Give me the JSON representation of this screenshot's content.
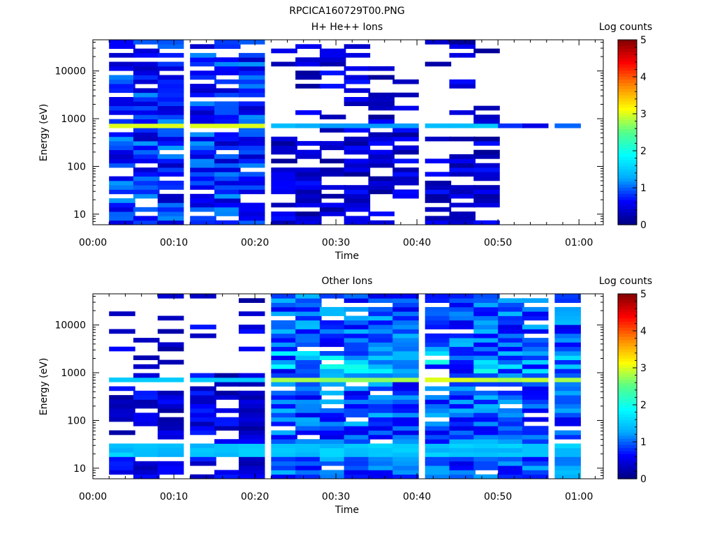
{
  "figure_title": "RPCICA160729T00.PNG",
  "colors": {
    "colormap": [
      "#000080",
      "#0000ff",
      "#00aaff",
      "#00ffff",
      "#55ff88",
      "#ffff00",
      "#ff8800",
      "#ff0000",
      "#800000"
    ],
    "empty": "#ffffff",
    "axes": "#000000"
  },
  "chart_data": [
    {
      "type": "heatmap",
      "title": "H+ He++ Ions",
      "xlabel": "Time",
      "ylabel": "Energy (eV)",
      "colorbar_label": "Log counts",
      "colorbar_ticks": [
        "0",
        "1",
        "2",
        "3",
        "4",
        "5"
      ],
      "clim": [
        0,
        5
      ],
      "xlim": [
        "00:00",
        "01:03"
      ],
      "x_ticks": [
        "00:00",
        "00:10",
        "00:20",
        "00:30",
        "00:40",
        "00:50",
        "01:00"
      ],
      "ylim": [
        6,
        45000
      ],
      "yscale": "log",
      "y_ticks": [
        "10",
        "100",
        "1000",
        "10000"
      ],
      "time_bins_start": [
        "00:02",
        "00:05",
        "00:08",
        "00:12",
        "00:15",
        "00:18",
        "00:22",
        "00:25",
        "00:28",
        "00:31",
        "00:34",
        "00:37",
        "00:41",
        "00:44",
        "00:47",
        "00:50",
        "00:53",
        "00:57"
      ],
      "bin_width_min": 3.2,
      "active_bins": 15,
      "dense_bins": 6,
      "band_energy_eV": 700,
      "band_levels": [
        3.0,
        3.0,
        3.0,
        3.0,
        3.0,
        3.0,
        1.4,
        1.3,
        1.2,
        1.2,
        1.2,
        1.2,
        1.4,
        1.4,
        1.5,
        0.8,
        0.5,
        1.0
      ]
    },
    {
      "type": "heatmap",
      "title": "Other Ions",
      "xlabel": "Time",
      "ylabel": "Energy (eV)",
      "colorbar_label": "Log counts",
      "colorbar_ticks": [
        "0",
        "1",
        "2",
        "3",
        "4",
        "5"
      ],
      "clim": [
        0,
        5
      ],
      "xlim": [
        "00:00",
        "01:03"
      ],
      "x_ticks": [
        "00:00",
        "00:10",
        "00:20",
        "00:30",
        "00:40",
        "00:50",
        "01:00"
      ],
      "ylim": [
        6,
        45000
      ],
      "yscale": "log",
      "y_ticks": [
        "10",
        "100",
        "1000",
        "10000"
      ],
      "time_bins_start": [
        "00:02",
        "00:05",
        "00:08",
        "00:12",
        "00:15",
        "00:18",
        "00:22",
        "00:25",
        "00:28",
        "00:31",
        "00:34",
        "00:37",
        "00:41",
        "00:44",
        "00:47",
        "00:50",
        "00:53",
        "00:57"
      ],
      "bin_width_min": 3.2,
      "sparse_bins": 6,
      "band_energy_eV": 700,
      "band_levels": [
        1.5,
        1.5,
        1.5,
        1.5,
        1.5,
        1.5,
        2.8,
        2.8,
        2.7,
        2.7,
        2.7,
        2.8,
        3.0,
        3.0,
        2.9,
        2.8,
        2.9,
        2.8
      ],
      "low_band_energy_eV": 25,
      "low_band_level": 1.3
    }
  ]
}
